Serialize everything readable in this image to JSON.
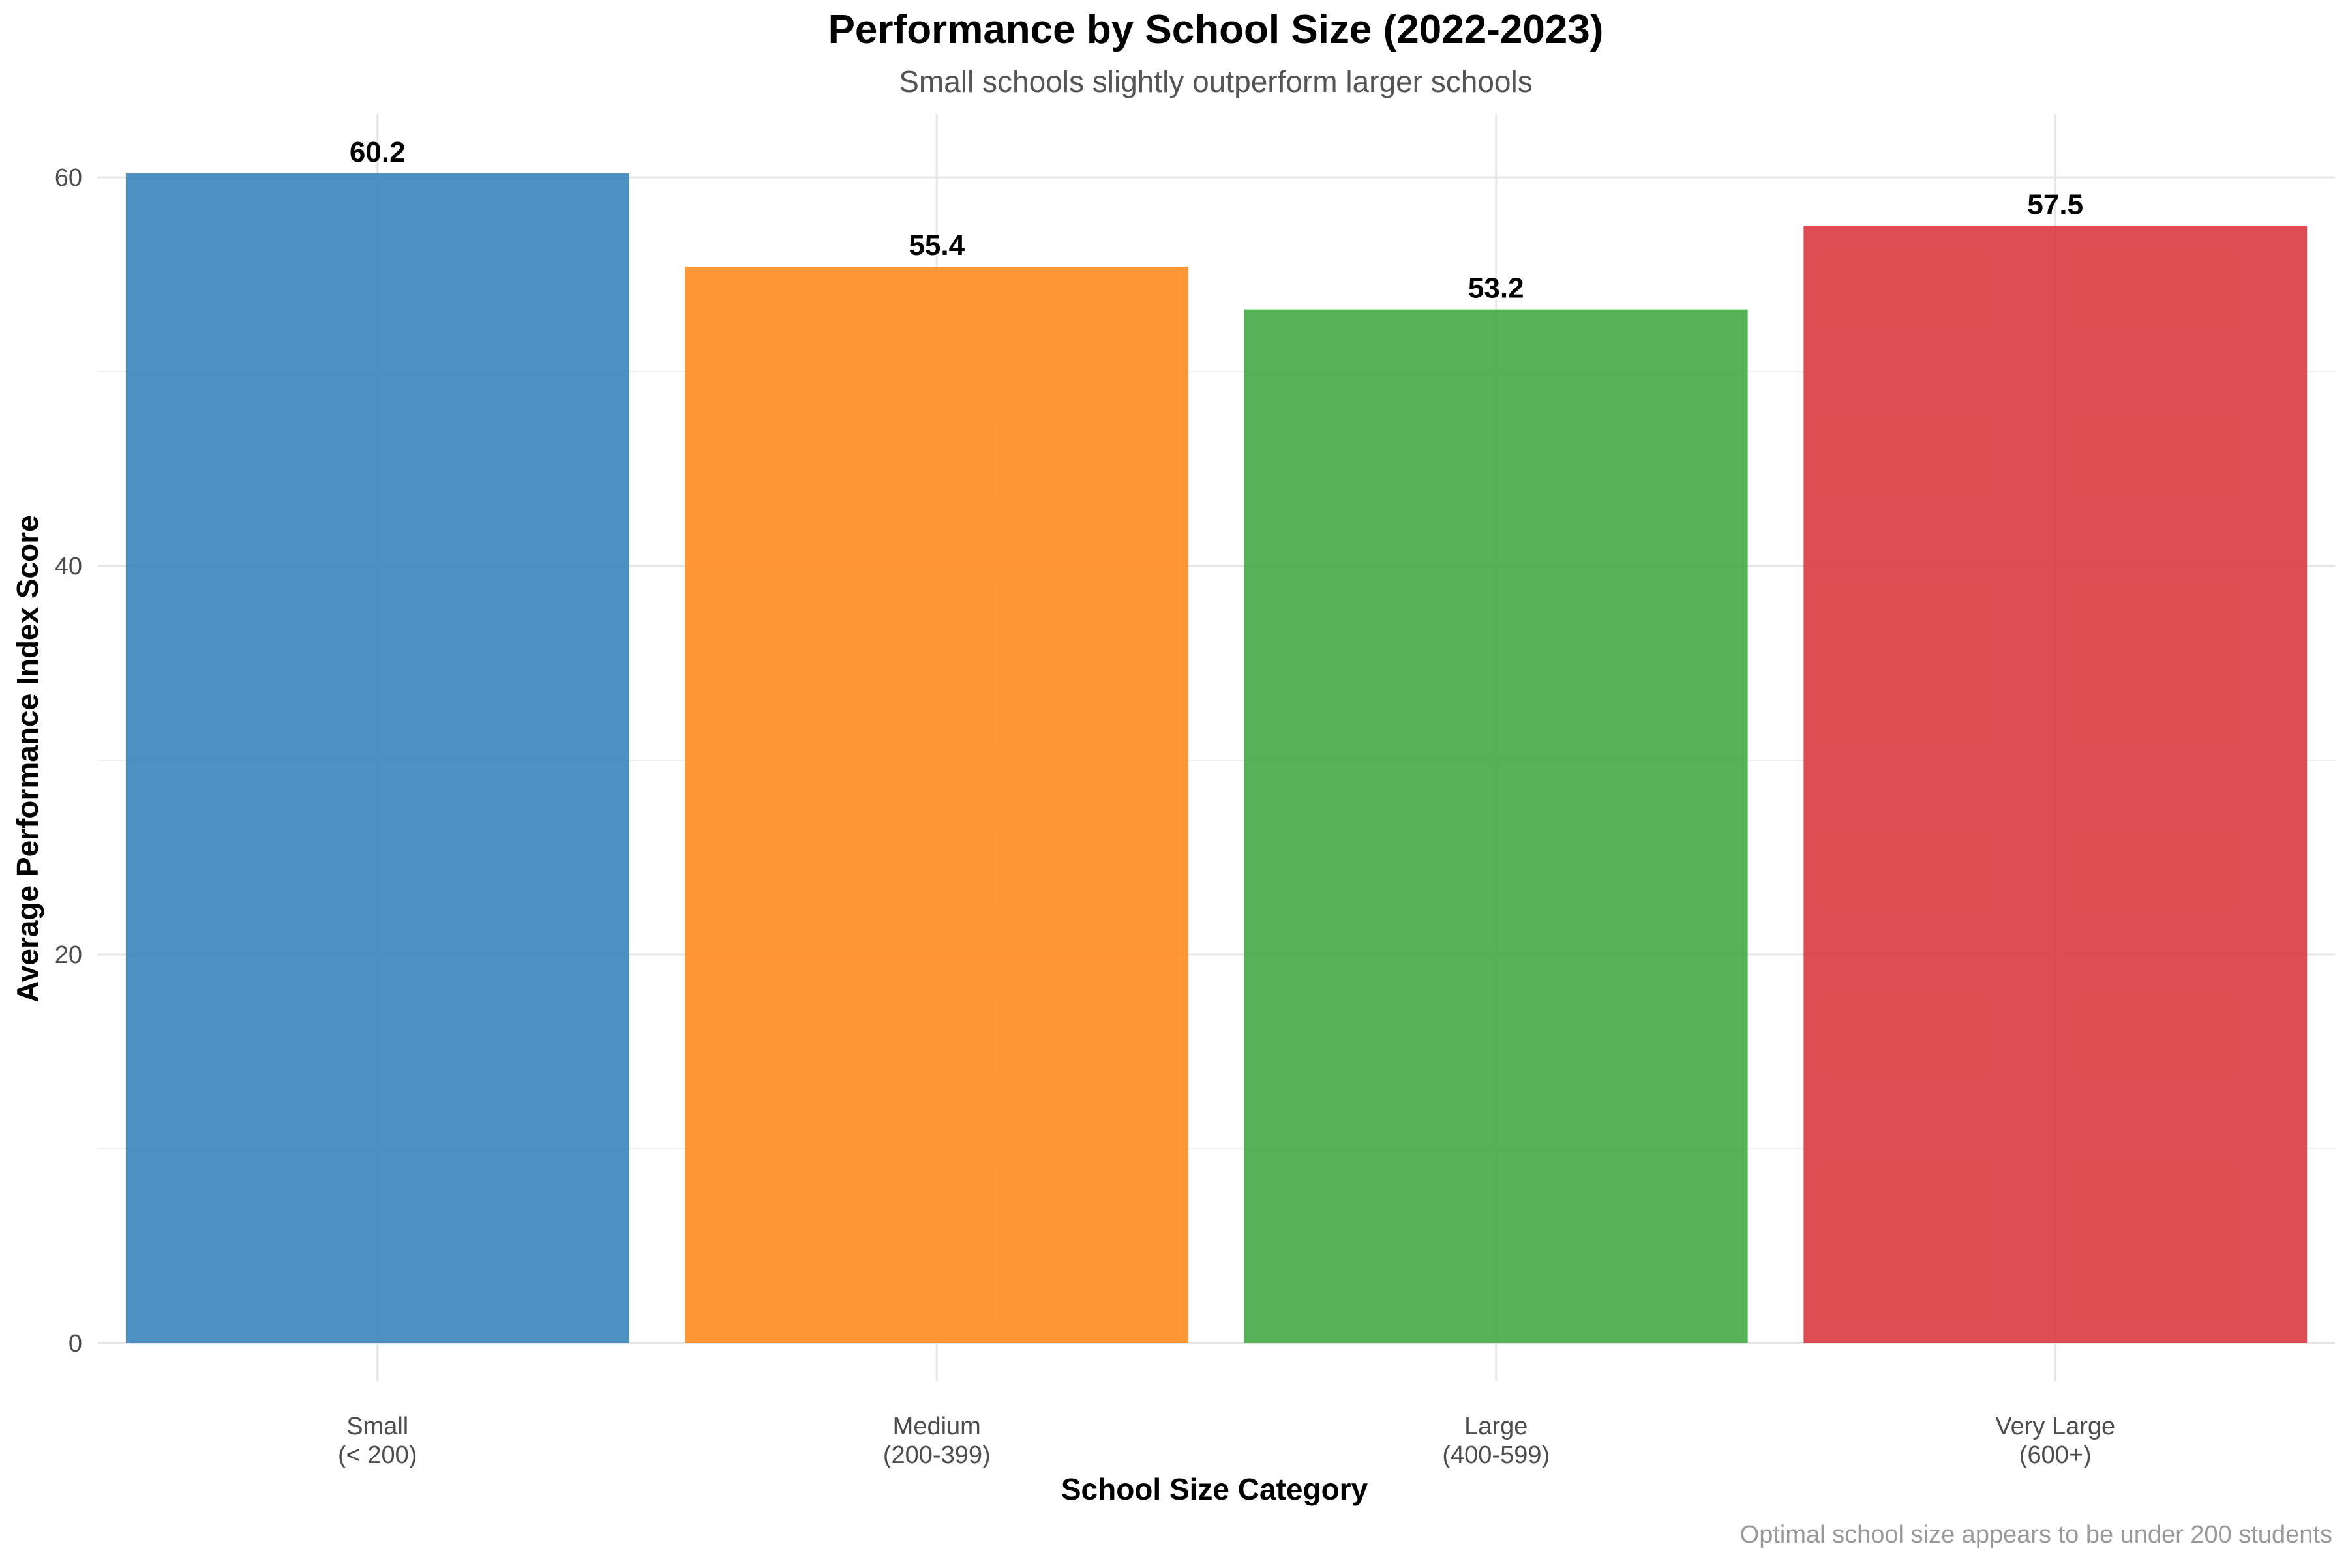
{
  "chart_data": {
    "type": "bar",
    "title": "Performance by School Size (2022-2023)",
    "subtitle": "Small schools slightly outperform larger schools",
    "xlabel": "School Size Category",
    "ylabel": "Average Performance Index Score",
    "caption": "Optimal school size appears to be under 200 students",
    "categories": [
      [
        "Small",
        "(< 200)"
      ],
      [
        "Medium",
        "(200-399)"
      ],
      [
        "Large",
        "(400-599)"
      ],
      [
        "Very Large",
        "(600+)"
      ]
    ],
    "values": [
      60.2,
      55.4,
      53.2,
      57.5
    ],
    "data_labels": [
      "60.2",
      "55.4",
      "53.2",
      "57.5"
    ],
    "colors": [
      "#3a85bd",
      "#ff8c1f",
      "#44aa44",
      "#d93a40"
    ],
    "ylim": [
      0,
      63
    ],
    "yticks": [
      0,
      20,
      40,
      60
    ],
    "grid": true,
    "legend": "none"
  }
}
